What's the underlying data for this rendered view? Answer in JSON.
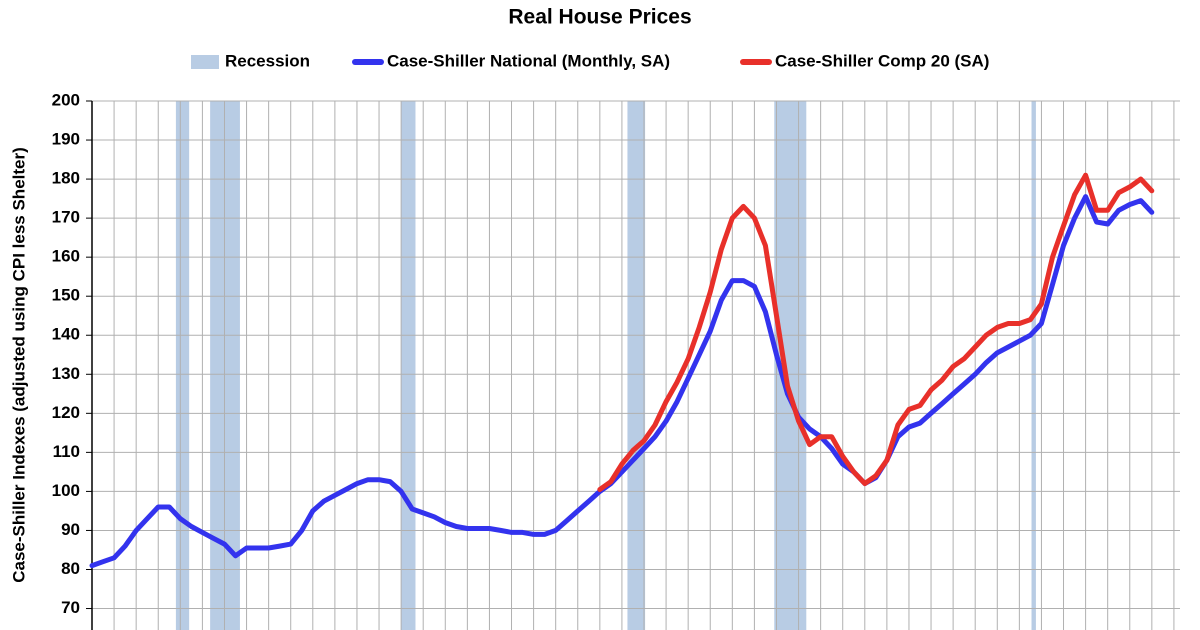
{
  "chart_data": {
    "type": "line",
    "title": "Real House Prices",
    "y_label": "Case-Shiller Indexes (adjusted using CPI less Shelter)",
    "recession_label": "Recession",
    "recession_color": "#b8cce4",
    "recessions": [
      [
        7.6,
        8.8
      ],
      [
        10.7,
        13.4
      ],
      [
        28.0,
        29.3
      ],
      [
        48.5,
        50.1
      ],
      [
        61.8,
        64.7
      ],
      [
        85.1,
        85.5
      ]
    ],
    "categories": [
      null,
      null,
      null,
      null,
      null,
      null,
      null,
      null,
      null,
      null,
      null,
      null,
      null,
      null,
      null,
      null,
      null,
      null,
      null,
      null,
      null,
      null,
      null,
      null,
      null,
      null,
      null,
      null,
      null,
      null,
      null,
      null,
      null,
      null,
      null,
      null,
      null,
      null,
      null,
      null,
      null,
      null,
      null,
      null,
      null,
      null,
      null,
      null,
      null,
      null,
      null,
      null,
      null,
      null,
      null,
      null,
      null,
      null,
      null,
      null,
      null,
      null,
      null,
      null,
      null,
      null,
      null,
      null,
      null,
      null,
      null,
      null,
      null,
      null,
      null,
      null,
      null,
      null,
      null,
      null,
      null,
      null,
      null,
      null,
      null,
      null,
      null,
      null,
      null,
      null,
      null,
      null,
      null,
      null,
      null,
      null,
      null
    ],
    "series": [
      {
        "name": "Case-Shiller National (Monthly, SA)",
        "color": "#3333ee",
        "values": [
          81,
          82,
          83,
          86,
          90,
          93,
          96,
          96,
          93,
          91,
          89.5,
          88,
          86.5,
          83.5,
          85.5,
          85.5,
          85.5,
          86,
          86.5,
          90,
          95,
          97.5,
          99,
          100.5,
          102,
          103,
          103,
          102.5,
          100,
          95.5,
          94.5,
          93.5,
          92,
          91,
          90.5,
          90.5,
          90.5,
          90,
          89.5,
          89.5,
          89,
          89,
          90,
          92.5,
          95,
          97.5,
          100,
          102,
          105,
          108,
          111,
          114,
          118,
          123,
          129,
          135,
          141,
          149,
          154,
          154,
          152.5,
          146,
          135,
          125,
          119,
          116,
          114,
          111,
          107,
          105,
          102,
          103.5,
          108,
          114,
          116.5,
          117.5,
          120,
          122.5,
          125,
          127.5,
          130,
          133,
          135.5,
          137,
          138.5,
          140,
          143,
          153,
          163,
          170,
          175.5,
          169,
          168.5,
          172,
          173.5,
          174.5,
          171.5
        ]
      },
      {
        "name": "Case-Shiller Comp 20  (SA)",
        "color": "#e8302a",
        "values": [
          null,
          null,
          null,
          null,
          null,
          null,
          null,
          null,
          null,
          null,
          null,
          null,
          null,
          null,
          null,
          null,
          null,
          null,
          null,
          null,
          null,
          null,
          null,
          null,
          null,
          null,
          null,
          null,
          null,
          null,
          null,
          null,
          null,
          null,
          null,
          null,
          null,
          null,
          null,
          null,
          null,
          null,
          null,
          null,
          null,
          null,
          100.5,
          102.5,
          107,
          110.5,
          113,
          117,
          123,
          128,
          134,
          142,
          151,
          162,
          170,
          173,
          170,
          163,
          145,
          127,
          118,
          112,
          114,
          114,
          109,
          105,
          102,
          104,
          108,
          117,
          121,
          122,
          126,
          128.5,
          132,
          134,
          137,
          140,
          142,
          143,
          143,
          144,
          148,
          160,
          168,
          176,
          181,
          172,
          172,
          176.5,
          178,
          180,
          177
        ]
      }
    ],
    "ylim": [
      64.5,
      200
    ],
    "yticks": [
      70,
      80,
      90,
      100,
      110,
      120,
      130,
      140,
      150,
      160,
      170,
      180,
      190,
      200
    ],
    "grid": true
  }
}
